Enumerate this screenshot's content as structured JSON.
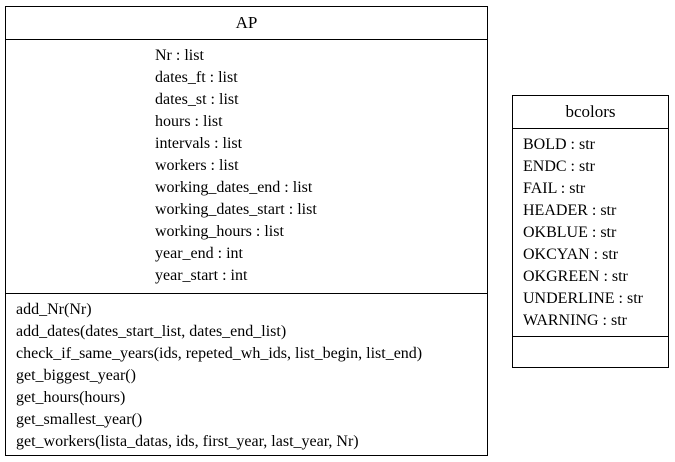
{
  "classes": {
    "ap": {
      "name": "AP",
      "attributes": [
        "Nr : list",
        "dates_ft : list",
        "dates_st : list",
        "hours : list",
        "intervals : list",
        "workers : list",
        "working_dates_end : list",
        "working_dates_start : list",
        "working_hours : list",
        "year_end : int",
        "year_start : int"
      ],
      "methods": [
        "add_Nr(Nr)",
        "add_dates(dates_start_list, dates_end_list)",
        "check_if_same_years(ids, repeted_wh_ids, list_begin, list_end)",
        "get_biggest_year()",
        "get_hours(hours)",
        "get_smallest_year()",
        "get_workers(lista_datas, ids, first_year, last_year, Nr)"
      ]
    },
    "bcolors": {
      "name": "bcolors",
      "attributes": [
        "BOLD : str",
        "ENDC : str",
        "FAIL : str",
        "HEADER : str",
        "OKBLUE : str",
        "OKCYAN : str",
        "OKGREEN : str",
        "UNDERLINE : str",
        "WARNING : str"
      ],
      "methods": []
    }
  }
}
